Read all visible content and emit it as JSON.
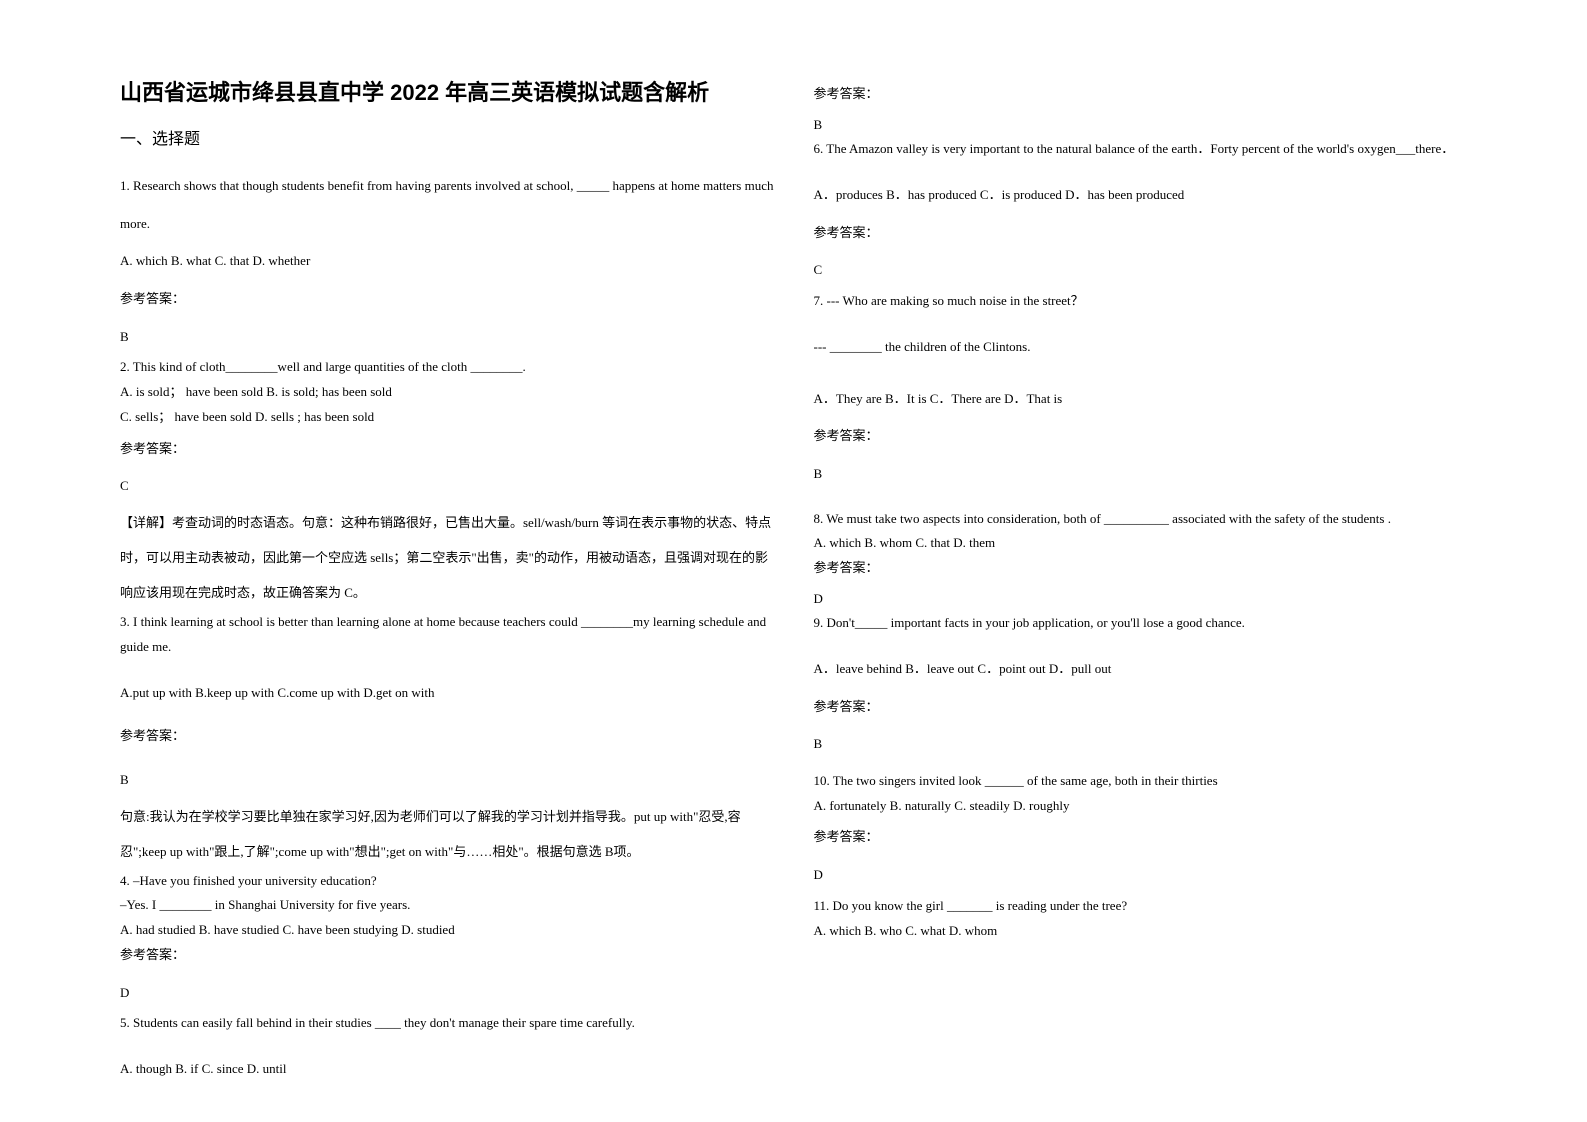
{
  "document": {
    "title": "山西省运城市绛县县直中学 2022 年高三英语模拟试题含解析",
    "section": "一、选择题",
    "answer_label": "参考答案：",
    "left_column": {
      "q1": {
        "text": "1. Research shows that though students benefit from having parents involved at school, _____ happens at home matters much more.",
        "options": "A. which               B. what            C. that               D. whether",
        "answer": "B"
      },
      "q2": {
        "text": "2. This kind of cloth________well and large quantities of the cloth ________.",
        "optA": "A. is sold；  have been sold       B. is sold; has been sold",
        "optC": "C. sells；  have been sold       D. sells ; has been sold",
        "answer": "C",
        "explanation": "【详解】考查动词的时态语态。句意：这种布销路很好，已售出大量。sell/wash/burn 等词在表示事物的状态、特点时，可以用主动表被动，因此第一个空应选 sells；第二空表示\"出售，卖\"的动作，用被动语态，且强调对现在的影响应该用现在完成时态，故正确答案为 C。"
      },
      "q3": {
        "text": "3. I think learning at school is better than learning alone at home because teachers could ________my learning schedule and guide me.",
        "options": "A.put up with    B.keep up with  C.come up with D.get on with",
        "answer": "B",
        "explanation": "句意:我认为在学校学习要比单独在家学习好,因为老师们可以了解我的学习计划并指导我。put up with\"忍受,容忍\";keep up with\"跟上,了解\";come up with\"想出\";get on with\"与……相处\"。根据句意选 B项。"
      },
      "q4": {
        "line1": "4. –Have you finished your university education?",
        "line2": "  –Yes. I ________ in Shanghai University for five years.",
        "options": "  A. had studied    B. have studied    C. have been studying  D. studied",
        "answer": "D"
      },
      "q5": {
        "text": "5.  Students can easily fall behind in their studies ____ they don't manage their spare time carefully.",
        "options": "A. though                B. if                      C. since                       D. until"
      }
    },
    "right_column": {
      "q5_answer": "B",
      "q6": {
        "text": "6. The Amazon valley is very important to the natural balance of the earth．Forty percent of the world's oxygen___there．",
        "options": "    A．produces      B．has produced     C．is produced     D．has been produced",
        "answer": "C"
      },
      "q7": {
        "line1": "7. --- Who are making so much noise in the street？",
        "line2": "--- ________ the children of the Clintons.",
        "options": "A．They are     B．It is     C．There are         D．That is",
        "answer": "B"
      },
      "q8": {
        "line1": "8. We must take two aspects into consideration, both of __________ associated with the safety of the students .",
        "options": "         A. which   B. whom         C. that  D. them",
        "answer": "D"
      },
      "q9": {
        "text": "9. Don't_____ important facts in your job application, or you'll lose a good chance.",
        "options": "A．leave behind                   B．leave out                   C．point out                   D．pull out",
        "answer": "B"
      },
      "q10": {
        "text": "10. The two singers invited look ______ of the same age, both in their thirties",
        "options": "A. fortunately    B. naturally    C. steadily    D. roughly",
        "answer": "D"
      },
      "q11": {
        "text": "11. Do you know the girl _______ is reading under the tree?",
        "options": "   A. which      B. who      C. what      D. whom"
      }
    }
  }
}
